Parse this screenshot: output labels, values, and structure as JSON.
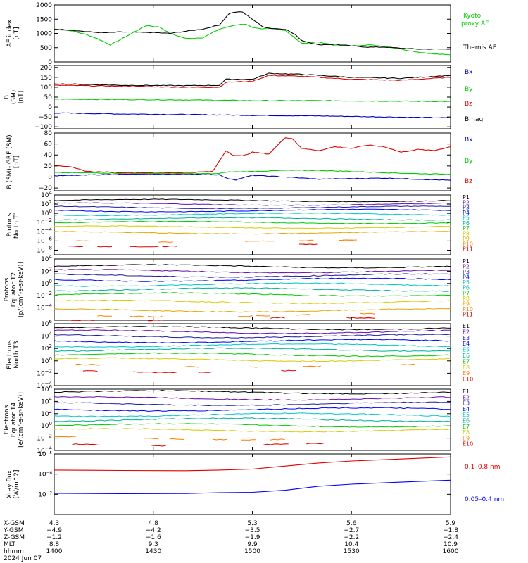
{
  "colors": {
    "black": "#000000",
    "purple": "#6a0dad",
    "navy": "#1f1fa0",
    "blue": "#0000ff",
    "cyan": "#00c8c8",
    "teal": "#00b09a",
    "green": "#00cc00",
    "yellow": "#d6cc00",
    "amber": "#e6a800",
    "orange": "#ff7f00",
    "red": "#e00000",
    "darkred": "#b00000",
    "kyoto": "#00d000",
    "bmag": "#000000",
    "bx": "#0000cc",
    "by": "#00cc00",
    "bz": "#dd0000"
  },
  "chart_data": [
    {
      "type": "line",
      "ylabel": [
        "AE index",
        "[nT]"
      ],
      "ylim": [
        0,
        2000
      ],
      "yticks": [
        0,
        500,
        1000,
        1500,
        2000
      ],
      "series": [
        {
          "name": "Kyoto proxy AE",
          "color": "kyoto",
          "x": [
            1400,
            1405,
            1410,
            1413,
            1417,
            1420,
            1425,
            1428,
            1432,
            1435,
            1440,
            1445,
            1450,
            1455,
            1458,
            1500,
            1503,
            1505,
            1510,
            1515,
            1520,
            1525,
            1530,
            1535,
            1540,
            1545,
            1550,
            1555,
            1600
          ],
          "y": [
            1150,
            1100,
            950,
            820,
            600,
            780,
            1100,
            1280,
            1220,
            1000,
            820,
            850,
            1150,
            1300,
            1330,
            1200,
            1150,
            1200,
            1100,
            650,
            700,
            580,
            560,
            600,
            550,
            450,
            350,
            280,
            250
          ]
        },
        {
          "name": "Themis AE",
          "color": "black",
          "x": [
            1400,
            1405,
            1410,
            1415,
            1420,
            1425,
            1430,
            1435,
            1440,
            1445,
            1450,
            1453,
            1455,
            1457,
            1500,
            1503,
            1505,
            1510,
            1513,
            1515,
            1520,
            1525,
            1530,
            1535,
            1540,
            1545,
            1550,
            1555,
            1600
          ],
          "y": [
            1150,
            1120,
            1060,
            1020,
            1050,
            1040,
            1030,
            1000,
            1080,
            1150,
            1300,
            1700,
            1750,
            1750,
            1500,
            1250,
            1180,
            1150,
            950,
            750,
            600,
            620,
            560,
            520,
            520,
            480,
            450,
            450,
            450
          ]
        }
      ],
      "right_labels": [
        [
          "Kyoto",
          "proxy AE"
        ],
        [
          "Themis AE"
        ]
      ]
    },
    {
      "type": "line",
      "ylabel": [
        "B",
        "(SM)",
        "[nT]"
      ],
      "ylim": [
        -110,
        210
      ],
      "yticks": [
        -100,
        -50,
        0,
        50,
        100,
        150,
        200
      ],
      "series": [
        {
          "name": "Bx",
          "color": "bx",
          "x": [
            1400,
            1420,
            1440,
            1450,
            1500,
            1520,
            1540,
            1600
          ],
          "y": [
            -30,
            -35,
            -38,
            -40,
            -42,
            -45,
            -50,
            -55
          ]
        },
        {
          "name": "By",
          "color": "by",
          "x": [
            1400,
            1420,
            1440,
            1450,
            1500,
            1520,
            1540,
            1600
          ],
          "y": [
            40,
            38,
            36,
            34,
            32,
            32,
            30,
            28
          ]
        },
        {
          "name": "Bz",
          "color": "bz",
          "x": [
            1400,
            1420,
            1440,
            1450,
            1452,
            1500,
            1505,
            1515,
            1530,
            1545,
            1600
          ],
          "y": [
            110,
            105,
            100,
            100,
            125,
            130,
            160,
            155,
            140,
            135,
            150
          ]
        },
        {
          "name": "Bmag",
          "color": "bmag",
          "x": [
            1400,
            1420,
            1440,
            1450,
            1452,
            1500,
            1505,
            1515,
            1530,
            1545,
            1600
          ],
          "y": [
            118,
            110,
            108,
            110,
            140,
            140,
            170,
            165,
            150,
            145,
            160
          ]
        }
      ],
      "right_labels": [
        "Bx",
        "By",
        "Bz",
        "Bmag"
      ]
    },
    {
      "type": "line",
      "ylabel": [
        "B (SM)-IGRF (SM)",
        "[nT]"
      ],
      "ylim": [
        -25,
        80
      ],
      "yticks": [
        -20,
        0,
        20,
        40,
        60,
        80
      ],
      "series": [
        {
          "name": "Bx",
          "color": "bx",
          "x": [
            1400,
            1420,
            1440,
            1450,
            1452,
            1455,
            1500,
            1510,
            1520,
            1530,
            1540,
            1550,
            1600
          ],
          "y": [
            2,
            5,
            5,
            4,
            -2,
            -5,
            3,
            0,
            -4,
            -3,
            -2,
            -4,
            -6
          ]
        },
        {
          "name": "By",
          "color": "by",
          "x": [
            1400,
            1420,
            1440,
            1450,
            1452,
            1500,
            1510,
            1520,
            1530,
            1540,
            1550,
            1600
          ],
          "y": [
            8,
            7,
            6,
            6,
            9,
            10,
            12,
            12,
            10,
            8,
            6,
            5
          ]
        },
        {
          "name": "Bz",
          "color": "bz",
          "x": [
            1400,
            1405,
            1410,
            1420,
            1440,
            1448,
            1452,
            1454,
            1457,
            1500,
            1505,
            1510,
            1512,
            1515,
            1520,
            1525,
            1530,
            1535,
            1540,
            1545,
            1550,
            1555,
            1600
          ],
          "y": [
            22,
            18,
            10,
            8,
            8,
            10,
            48,
            40,
            38,
            45,
            42,
            72,
            70,
            52,
            48,
            55,
            52,
            58,
            55,
            45,
            50,
            48,
            55
          ]
        }
      ],
      "right_labels": [
        "Bx",
        "By",
        "Bz"
      ]
    },
    {
      "type": "line",
      "yaxis_log": true,
      "ylabel": [
        "Protons",
        "North T1"
      ],
      "ylim_exp": [
        -9,
        4
      ],
      "yticks_exp": [
        -8,
        -6,
        -4,
        -2,
        0,
        2,
        4
      ],
      "channels": [
        {
          "name": "P1",
          "color": "black",
          "level": 2.8
        },
        {
          "name": "P2",
          "color": "purple",
          "level": 2.0
        },
        {
          "name": "P3",
          "color": "navy",
          "level": 1.3
        },
        {
          "name": "P4",
          "color": "blue",
          "level": 0.6
        },
        {
          "name": "P5",
          "color": "cyan",
          "level": -0.2
        },
        {
          "name": "P6",
          "color": "teal",
          "level": -1.2
        },
        {
          "name": "P7",
          "color": "green",
          "level": -2.0
        },
        {
          "name": "P8",
          "color": "yellow",
          "level": -3.0
        },
        {
          "name": "P9",
          "color": "amber",
          "level": -4.2
        },
        {
          "name": "P10",
          "color": "orange",
          "level": -6.0
        },
        {
          "name": "P11",
          "color": "red",
          "level": -7.0
        }
      ]
    },
    {
      "type": "line",
      "yaxis_log": true,
      "ylabel": [
        "Protons",
        "Equator T2",
        "[p/(cm²-s-sr-keV)]"
      ],
      "ylim_exp": [
        -6,
        4
      ],
      "yticks_exp": [
        -4,
        -2,
        0,
        2,
        4
      ],
      "channels": [
        {
          "name": "P1",
          "color": "black",
          "level": 2.8
        },
        {
          "name": "P2",
          "color": "purple",
          "level": 2.0
        },
        {
          "name": "P3",
          "color": "navy",
          "level": 1.3
        },
        {
          "name": "P4",
          "color": "blue",
          "level": 0.6
        },
        {
          "name": "P5",
          "color": "cyan",
          "level": -0.2
        },
        {
          "name": "P6",
          "color": "teal",
          "level": -1.0
        },
        {
          "name": "P7",
          "color": "green",
          "level": -1.8
        },
        {
          "name": "P8",
          "color": "yellow",
          "level": -3.0
        },
        {
          "name": "P9",
          "color": "amber",
          "level": -4.4
        },
        {
          "name": "P10",
          "color": "orange",
          "level": -5.2
        },
        {
          "name": "P11",
          "color": "red",
          "level": -5.8
        }
      ]
    },
    {
      "type": "line",
      "yaxis_log": true,
      "ylabel": [
        "Electrons",
        "North T3"
      ],
      "ylim_exp": [
        -4,
        6
      ],
      "yticks_exp": [
        -4,
        -2,
        0,
        2,
        4,
        6
      ],
      "channels": [
        {
          "name": "E1",
          "color": "black",
          "level": 5.3
        },
        {
          "name": "E2",
          "color": "purple",
          "level": 4.7
        },
        {
          "name": "E3",
          "color": "navy",
          "level": 4.0
        },
        {
          "name": "E4",
          "color": "blue",
          "level": 3.2
        },
        {
          "name": "E5",
          "color": "cyan",
          "level": 2.5
        },
        {
          "name": "E6",
          "color": "teal",
          "level": 1.8
        },
        {
          "name": "E7",
          "color": "green",
          "level": 1.0
        },
        {
          "name": "E8",
          "color": "yellow",
          "level": 0.2
        },
        {
          "name": "E9",
          "color": "orange",
          "level": -0.8
        },
        {
          "name": "E10",
          "color": "red",
          "level": -1.6
        }
      ]
    },
    {
      "type": "line",
      "yaxis_log": true,
      "ylabel": [
        "Electrons",
        "Equator T4",
        "[e/(cm²-s-sr-keV)]"
      ],
      "ylim_exp": [
        -4,
        6
      ],
      "yticks_exp": [
        -4,
        -2,
        0,
        2,
        4,
        6
      ],
      "channels": [
        {
          "name": "E1",
          "color": "black",
          "level": 5.5
        },
        {
          "name": "E2",
          "color": "purple",
          "level": 4.5
        },
        {
          "name": "E3",
          "color": "navy",
          "level": 3.6
        },
        {
          "name": "E4",
          "color": "blue",
          "level": 2.7
        },
        {
          "name": "E5",
          "color": "cyan",
          "level": 1.8
        },
        {
          "name": "E6",
          "color": "teal",
          "level": 1.0
        },
        {
          "name": "E7",
          "color": "green",
          "level": 0.1
        },
        {
          "name": "E8",
          "color": "yellow",
          "level": -0.7
        },
        {
          "name": "E9",
          "color": "orange",
          "level": -2.0
        },
        {
          "name": "E10",
          "color": "red",
          "level": -3.0
        }
      ]
    },
    {
      "type": "line",
      "yaxis_log": true,
      "ylabel": [
        "Xray flux",
        "[W/m^2]"
      ],
      "ylim_exp": [
        -8,
        -5
      ],
      "ytick_labels": [
        "10⁻⁵",
        "10⁻⁶",
        "10⁻⁷"
      ],
      "series": [
        {
          "name": "0.1–0.8 nm",
          "color": "red",
          "x": [
            1400,
            1420,
            1440,
            1450,
            1500,
            1510,
            1520,
            1530,
            1545,
            1600
          ],
          "y": [
            -5.8,
            -5.82,
            -5.83,
            -5.8,
            -5.75,
            -5.6,
            -5.45,
            -5.35,
            -5.25,
            -5.15
          ]
        },
        {
          "name": "0.05–0.4 nm",
          "color": "blue",
          "x": [
            1400,
            1420,
            1440,
            1450,
            1500,
            1510,
            1520,
            1530,
            1545,
            1600
          ],
          "y": [
            -6.95,
            -6.97,
            -6.96,
            -6.92,
            -6.9,
            -6.8,
            -6.6,
            -6.5,
            -6.4,
            -6.3
          ]
        }
      ],
      "right_labels": [
        "0.1–0.8 nm",
        "0.05–0.4 nm"
      ]
    }
  ],
  "xaxis": {
    "row_labels": [
      "X-GSM",
      "Y-GSM",
      "Z-GSM",
      "MLT",
      "hhmm"
    ],
    "date": "2024 Jun 07",
    "ticks": [
      {
        "x": 1400,
        "vals": [
          "4.3",
          "−4.9",
          "−1.2",
          "8.8",
          "1400"
        ]
      },
      {
        "x": 1430,
        "vals": [
          "4.8",
          "−4.2",
          "−1.6",
          "9.3",
          "1430"
        ]
      },
      {
        "x": 1500,
        "vals": [
          "5.3",
          "−3.5",
          "−1.9",
          "9.9",
          "1500"
        ]
      },
      {
        "x": 1530,
        "vals": [
          "5.6",
          "−2.7",
          "−2.2",
          "10.4",
          "1530"
        ]
      },
      {
        "x": 1600,
        "vals": [
          "5.9",
          "−1.8",
          "−2.4",
          "10.9",
          "1600"
        ]
      }
    ]
  }
}
